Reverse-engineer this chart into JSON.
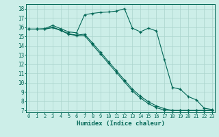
{
  "xlabel": "Humidex (Indice chaleur)",
  "bg_color": "#cceee8",
  "grid_color": "#aad4cc",
  "line_color": "#006655",
  "x_ticks": [
    0,
    1,
    2,
    3,
    4,
    5,
    6,
    7,
    8,
    9,
    10,
    11,
    12,
    13,
    14,
    15,
    16,
    17,
    18,
    19,
    20,
    21,
    22,
    23
  ],
  "y_ticks": [
    7,
    8,
    9,
    10,
    11,
    12,
    13,
    14,
    15,
    16,
    17,
    18
  ],
  "ylim": [
    6.8,
    18.5
  ],
  "xlim": [
    -0.3,
    23.3
  ],
  "line1_x": [
    0,
    1,
    2,
    3,
    4,
    5,
    6,
    7,
    8,
    9,
    10,
    11,
    12,
    13,
    14,
    15,
    16,
    17,
    18,
    19,
    20,
    21,
    22,
    23
  ],
  "line1_y": [
    15.8,
    15.8,
    15.85,
    16.2,
    15.85,
    15.5,
    15.4,
    17.35,
    17.5,
    17.6,
    17.65,
    17.75,
    18.0,
    15.9,
    15.5,
    15.9,
    15.6,
    12.5,
    9.5,
    9.3,
    8.5,
    8.15,
    7.25,
    7.1
  ],
  "line2_x": [
    0,
    1,
    2,
    3,
    4,
    5,
    6,
    7,
    8,
    9,
    10,
    11,
    12,
    13,
    14,
    15,
    16,
    17,
    18,
    19,
    20,
    21,
    22,
    23
  ],
  "line2_y": [
    15.8,
    15.8,
    15.8,
    16.0,
    15.7,
    15.3,
    15.15,
    15.25,
    14.3,
    13.3,
    12.3,
    11.3,
    10.3,
    9.3,
    8.55,
    7.95,
    7.5,
    7.2,
    7.0,
    7.0,
    7.0,
    7.0,
    7.0,
    7.0
  ],
  "line3_x": [
    0,
    1,
    2,
    3,
    4,
    5,
    6,
    7,
    8,
    9,
    10,
    11,
    12,
    13,
    14,
    15,
    16,
    17,
    18,
    19,
    20,
    21,
    22,
    23
  ],
  "line3_y": [
    15.8,
    15.8,
    15.8,
    15.95,
    15.65,
    15.25,
    15.1,
    15.1,
    14.1,
    13.1,
    12.1,
    11.1,
    10.1,
    9.1,
    8.35,
    7.75,
    7.3,
    7.05,
    7.0,
    7.0,
    7.0,
    7.0,
    7.0,
    7.0
  ]
}
